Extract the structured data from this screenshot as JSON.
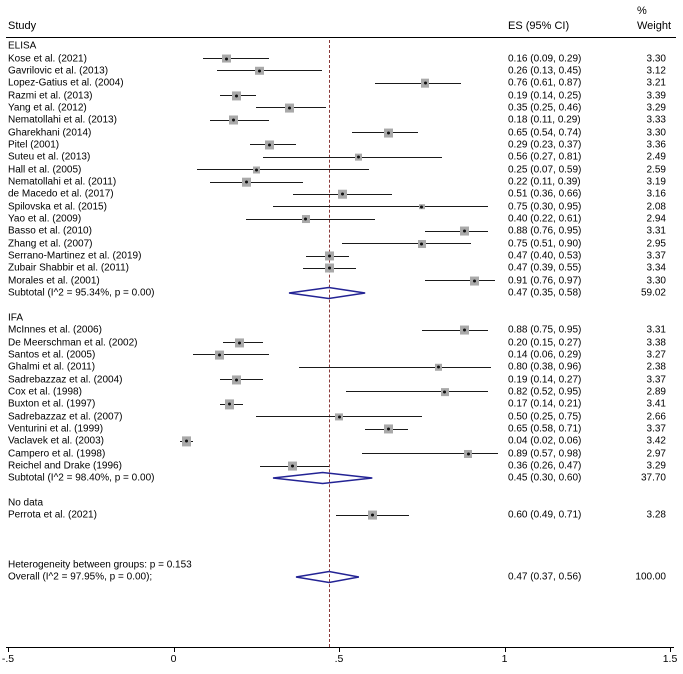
{
  "header": {
    "study_col": "Study",
    "es_col": "ES (95% CI)",
    "weight_col_line1": "%",
    "weight_col_line2": "Weight"
  },
  "axis": {
    "min": -0.5,
    "max": 1.5,
    "tick_values": [
      -0.5,
      0,
      0.5,
      1,
      1.5
    ],
    "tick_labels": [
      "-.5",
      "0",
      ".5",
      "1",
      "1.5"
    ],
    "ref_line_value": 0.47
  },
  "colors": {
    "marker_fill": "#a9a9a9",
    "marker_dot": "#111111",
    "ci_line": "#1a1a1a",
    "diamond_stroke": "#232394",
    "ref_line": "#8b3a3a",
    "text": "#000000"
  },
  "chart_data": {
    "type": "forest",
    "title": "",
    "effect_label": "ES (95% CI)",
    "groups": [
      {
        "label": "ELISA",
        "studies": [
          {
            "label": "Kose et al. (2021)",
            "es": 0.16,
            "lo": 0.09,
            "hi": 0.29,
            "es_text": "0.16 (0.09, 0.29)",
            "weight": "3.30"
          },
          {
            "label": "Gavrilovic et al. (2013)",
            "es": 0.26,
            "lo": 0.13,
            "hi": 0.45,
            "es_text": "0.26 (0.13, 0.45)",
            "weight": "3.12"
          },
          {
            "label": "Lopez-Gatius et al. (2004)",
            "es": 0.76,
            "lo": 0.61,
            "hi": 0.87,
            "es_text": "0.76 (0.61, 0.87)",
            "weight": "3.21"
          },
          {
            "label": "Razmi et al. (2013)",
            "es": 0.19,
            "lo": 0.14,
            "hi": 0.25,
            "es_text": "0.19 (0.14, 0.25)",
            "weight": "3.39"
          },
          {
            "label": "Yang et al. (2012)",
            "es": 0.35,
            "lo": 0.25,
            "hi": 0.46,
            "es_text": "0.35 (0.25, 0.46)",
            "weight": "3.29"
          },
          {
            "label": "Nematollahi et al. (2013)",
            "es": 0.18,
            "lo": 0.11,
            "hi": 0.29,
            "es_text": "0.18 (0.11, 0.29)",
            "weight": "3.33"
          },
          {
            "label": "Gharekhani (2014)",
            "es": 0.65,
            "lo": 0.54,
            "hi": 0.74,
            "es_text": "0.65 (0.54, 0.74)",
            "weight": "3.30"
          },
          {
            "label": "Pitel (2001)",
            "es": 0.29,
            "lo": 0.23,
            "hi": 0.37,
            "es_text": "0.29 (0.23, 0.37)",
            "weight": "3.36"
          },
          {
            "label": "Suteu et al. (2013)",
            "es": 0.56,
            "lo": 0.27,
            "hi": 0.81,
            "es_text": "0.56 (0.27, 0.81)",
            "weight": "2.49"
          },
          {
            "label": "Hall et al. (2005)",
            "es": 0.25,
            "lo": 0.07,
            "hi": 0.59,
            "es_text": "0.25 (0.07, 0.59)",
            "weight": "2.59"
          },
          {
            "label": "Nematollahi et al. (2011)",
            "es": 0.22,
            "lo": 0.11,
            "hi": 0.39,
            "es_text": "0.22 (0.11, 0.39)",
            "weight": "3.19"
          },
          {
            "label": "de Macedo et al. (2017)",
            "es": 0.51,
            "lo": 0.36,
            "hi": 0.66,
            "es_text": "0.51 (0.36, 0.66)",
            "weight": "3.16"
          },
          {
            "label": "Spilovska et al. (2015)",
            "es": 0.75,
            "lo": 0.3,
            "hi": 0.95,
            "es_text": "0.75 (0.30, 0.95)",
            "weight": "2.08"
          },
          {
            "label": "Yao et al. (2009)",
            "es": 0.4,
            "lo": 0.22,
            "hi": 0.61,
            "es_text": "0.40 (0.22, 0.61)",
            "weight": "2.94"
          },
          {
            "label": "Basso et al. (2010)",
            "es": 0.88,
            "lo": 0.76,
            "hi": 0.95,
            "es_text": "0.88 (0.76, 0.95)",
            "weight": "3.31"
          },
          {
            "label": "Zhang et al. (2007)",
            "es": 0.75,
            "lo": 0.51,
            "hi": 0.9,
            "es_text": "0.75 (0.51, 0.90)",
            "weight": "2.95"
          },
          {
            "label": "Serrano-Martinez  et al. (2019)",
            "es": 0.47,
            "lo": 0.4,
            "hi": 0.53,
            "es_text": "0.47 (0.40, 0.53)",
            "weight": "3.37"
          },
          {
            "label": "Zubair Shabbir et al. (2011)",
            "es": 0.47,
            "lo": 0.39,
            "hi": 0.55,
            "es_text": "0.47 (0.39, 0.55)",
            "weight": "3.34"
          },
          {
            "label": "Morales et al. (2001)",
            "es": 0.91,
            "lo": 0.76,
            "hi": 0.97,
            "es_text": "0.91 (0.76, 0.97)",
            "weight": "3.30"
          }
        ],
        "subtotal": {
          "label": "Subtotal  (I^2 = 95.34%, p = 0.00)",
          "es": 0.47,
          "lo": 0.35,
          "hi": 0.58,
          "es_text": "0.47 (0.35, 0.58)",
          "weight": "59.02"
        }
      },
      {
        "label": "IFA",
        "studies": [
          {
            "label": "McInnes et al. (2006)",
            "es": 0.88,
            "lo": 0.75,
            "hi": 0.95,
            "es_text": "0.88 (0.75, 0.95)",
            "weight": "3.31"
          },
          {
            "label": "De Meerschman et al.  (2002)",
            "es": 0.2,
            "lo": 0.15,
            "hi": 0.27,
            "es_text": "0.20 (0.15, 0.27)",
            "weight": "3.38"
          },
          {
            "label": "Santos et al. (2005)",
            "es": 0.14,
            "lo": 0.06,
            "hi": 0.29,
            "es_text": "0.14 (0.06, 0.29)",
            "weight": "3.27"
          },
          {
            "label": "Ghalmi et al. (2011)",
            "es": 0.8,
            "lo": 0.38,
            "hi": 0.96,
            "es_text": "0.80 (0.38, 0.96)",
            "weight": "2.38"
          },
          {
            "label": "Sadrebazzaz et al. (2004)",
            "es": 0.19,
            "lo": 0.14,
            "hi": 0.27,
            "es_text": "0.19 (0.14, 0.27)",
            "weight": "3.37"
          },
          {
            "label": "Cox et al. (1998)",
            "es": 0.82,
            "lo": 0.52,
            "hi": 0.95,
            "es_text": "0.82 (0.52, 0.95)",
            "weight": "2.89"
          },
          {
            "label": "Buxton et al. (1997)",
            "es": 0.17,
            "lo": 0.14,
            "hi": 0.21,
            "es_text": "0.17 (0.14, 0.21)",
            "weight": "3.41"
          },
          {
            "label": "Sadrebazzaz et al. (2007)",
            "es": 0.5,
            "lo": 0.25,
            "hi": 0.75,
            "es_text": "0.50 (0.25, 0.75)",
            "weight": "2.66"
          },
          {
            "label": "Venturini et al. (1999)",
            "es": 0.65,
            "lo": 0.58,
            "hi": 0.71,
            "es_text": "0.65 (0.58, 0.71)",
            "weight": "3.37"
          },
          {
            "label": "Vaclavek et al. (2003)",
            "es": 0.04,
            "lo": 0.02,
            "hi": 0.06,
            "es_text": "0.04 (0.02, 0.06)",
            "weight": "3.42"
          },
          {
            "label": "Campero et al. (1998)",
            "es": 0.89,
            "lo": 0.57,
            "hi": 0.98,
            "es_text": "0.89 (0.57, 0.98)",
            "weight": "2.97"
          },
          {
            "label": "Reichel and Drake (1996)",
            "es": 0.36,
            "lo": 0.26,
            "hi": 0.47,
            "es_text": "0.36 (0.26, 0.47)",
            "weight": "3.29"
          }
        ],
        "subtotal": {
          "label": "Subtotal  (I^2 = 98.40%, p = 0.00)",
          "es": 0.45,
          "lo": 0.3,
          "hi": 0.6,
          "es_text": "0.45 (0.30, 0.60)",
          "weight": "37.70"
        }
      },
      {
        "label": "No data",
        "studies": [
          {
            "label": "Perrota et al. (2021)",
            "es": 0.6,
            "lo": 0.49,
            "hi": 0.71,
            "es_text": "0.60 (0.49, 0.71)",
            "weight": "3.28"
          }
        ],
        "subtotal": null
      }
    ],
    "between_groups_note": "Heterogeneity between groups: p = 0.153",
    "overall": {
      "label": "Overall  (I^2 = 97.95%, p = 0.00);",
      "es": 0.47,
      "lo": 0.37,
      "hi": 0.56,
      "es_text": "0.47 (0.37, 0.56)",
      "weight": "100.00"
    }
  }
}
